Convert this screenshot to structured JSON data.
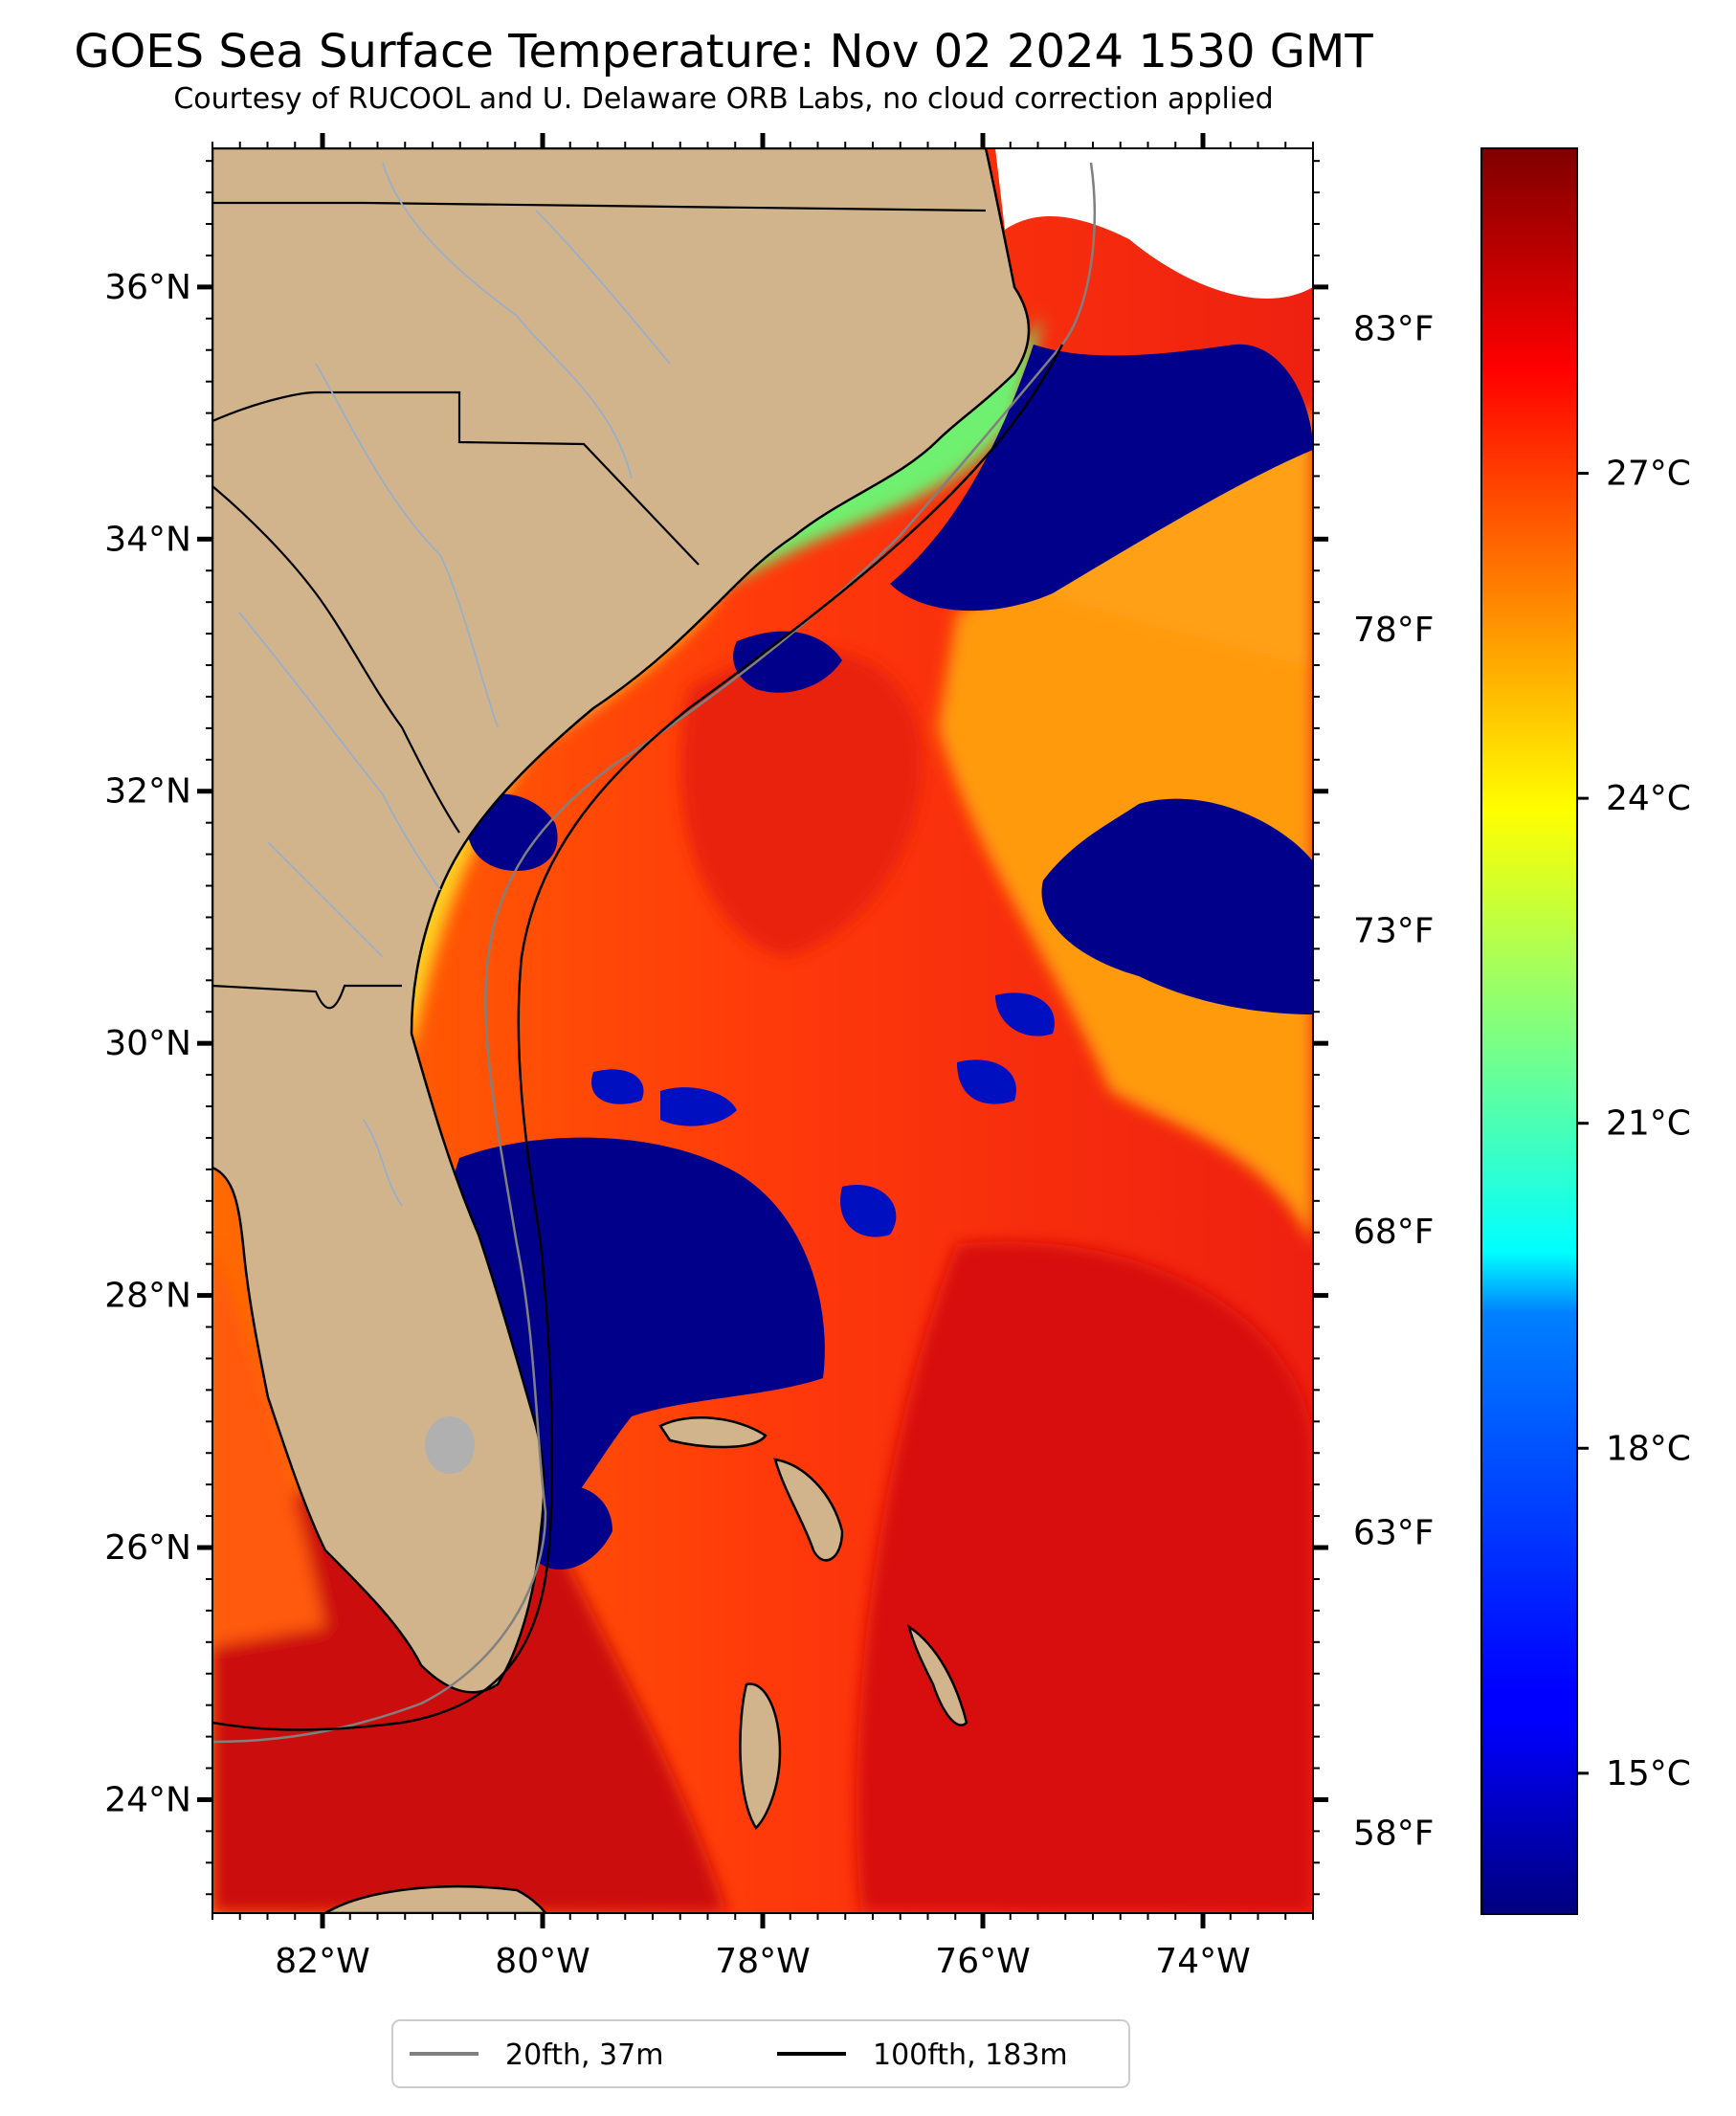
{
  "title": "GOES Sea Surface Temperature: Nov 02 2024 1530 GMT",
  "subtitle": "Courtesy of RUCOOL and U. Delaware ORB Labs, no cloud correction applied",
  "map": {
    "lon_range": [
      -83,
      -73
    ],
    "lat_range": [
      23.1,
      37.1
    ],
    "lat_ticks": [
      "36°N",
      "34°N",
      "32°N",
      "30°N",
      "28°N",
      "26°N",
      "24°N"
    ],
    "lat_values": [
      36,
      34,
      32,
      30,
      28,
      26,
      24
    ],
    "lon_ticks": [
      "82°W",
      "80°W",
      "78°W",
      "76°W",
      "74°W"
    ],
    "lon_values": [
      -82,
      -80,
      -78,
      -76,
      -74
    ],
    "f_ticks": [
      "83°F",
      "78°F",
      "73°F",
      "68°F",
      "63°F",
      "58°F"
    ],
    "f_values": [
      83,
      78,
      73,
      68,
      63,
      58
    ]
  },
  "colorbar": {
    "colormap": "jet",
    "range_c": [
      13.7,
      30.0
    ],
    "tick_labels": [
      "27°C",
      "24°C",
      "21°C",
      "18°C",
      "15°C"
    ],
    "tick_values": [
      27,
      24,
      21,
      18,
      15
    ]
  },
  "legend": {
    "entries": [
      {
        "label": "20fth, 37m",
        "color": "#808080"
      },
      {
        "label": "100fth, 183m",
        "color": "#000000"
      }
    ]
  },
  "colors": {
    "land": "#d2b48c",
    "cloud": "#00008b",
    "state_border": "#000000",
    "river": "#9aaec9",
    "lake": "#b0b0b0"
  }
}
